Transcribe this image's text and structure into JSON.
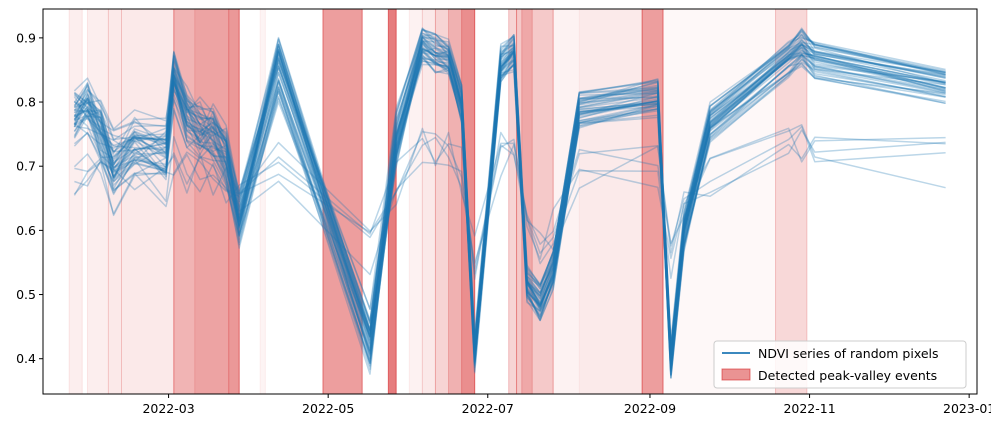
{
  "chart_data": {
    "type": "line",
    "title": "",
    "xlabel": "",
    "ylabel": "",
    "xlim": [
      "2022-01-12",
      "2023-01-04"
    ],
    "ylim": [
      0.345,
      0.945
    ],
    "x_ticks": [
      "2022-03-01",
      "2022-05-01",
      "2022-07-01",
      "2022-09-01",
      "2022-11-01",
      "2023-01-01"
    ],
    "x_tick_labels": [
      "2022-03",
      "2022-05",
      "2022-07",
      "2022-09",
      "2022-11",
      "2023-01"
    ],
    "y_ticks": [
      0.4,
      0.5,
      0.6,
      0.7,
      0.8,
      0.9
    ],
    "y_tick_labels": [
      "0.4",
      "0.5",
      "0.6",
      "0.7",
      "0.8",
      "0.9"
    ],
    "grid": false,
    "legend": {
      "placement": "lower-right",
      "entries": [
        "NDVI series of random pixels",
        "Detected peak-valley events"
      ]
    },
    "colors": {
      "series": "#1f77b4",
      "events": "#d62728"
    },
    "x_dates": [
      "2022-01-24",
      "2022-01-29",
      "2022-02-03",
      "2022-02-08",
      "2022-02-16",
      "2022-02-28",
      "2022-03-03",
      "2022-03-08",
      "2022-03-13",
      "2022-03-18",
      "2022-03-23",
      "2022-03-28",
      "2022-04-12",
      "2022-05-17",
      "2022-05-27",
      "2022-06-06",
      "2022-06-11",
      "2022-06-16",
      "2022-06-21",
      "2022-06-26",
      "2022-07-06",
      "2022-07-11",
      "2022-07-16",
      "2022-07-21",
      "2022-07-26",
      "2022-08-05",
      "2022-09-04",
      "2022-09-09",
      "2022-09-14",
      "2022-09-24",
      "2022-10-24",
      "2022-10-29",
      "2022-11-03",
      "2022-12-23"
    ],
    "typical_series": {
      "name": "NDVI series of random pixels",
      "values": [
        0.78,
        0.8,
        0.76,
        0.71,
        0.74,
        0.73,
        0.84,
        0.78,
        0.76,
        0.75,
        0.72,
        0.62,
        0.86,
        0.43,
        0.74,
        0.89,
        0.88,
        0.87,
        0.8,
        0.41,
        0.86,
        0.88,
        0.52,
        0.49,
        0.54,
        0.79,
        0.81,
        0.4,
        0.6,
        0.77,
        0.87,
        0.89,
        0.87,
        0.83
      ]
    },
    "series_count": 50,
    "events": [
      {
        "start": "2022-01-22",
        "end": "2022-01-27",
        "alpha": 0.08
      },
      {
        "start": "2022-01-29",
        "end": "2022-02-06",
        "alpha": 0.08
      },
      {
        "start": "2022-02-06",
        "end": "2022-02-11",
        "alpha": 0.1
      },
      {
        "start": "2022-02-11",
        "end": "2022-03-03",
        "alpha": 0.1
      },
      {
        "start": "2022-03-03",
        "end": "2022-03-28",
        "alpha": 0.35
      },
      {
        "start": "2022-03-11",
        "end": "2022-03-24",
        "alpha": 0.12
      },
      {
        "start": "2022-03-24",
        "end": "2022-03-28",
        "alpha": 0.2
      },
      {
        "start": "2022-04-05",
        "end": "2022-04-07",
        "alpha": 0.05
      },
      {
        "start": "2022-04-29",
        "end": "2022-05-14",
        "alpha": 0.45
      },
      {
        "start": "2022-05-24",
        "end": "2022-05-27",
        "alpha": 0.6
      },
      {
        "start": "2022-06-01",
        "end": "2022-06-06",
        "alpha": 0.06
      },
      {
        "start": "2022-06-06",
        "end": "2022-06-11",
        "alpha": 0.1
      },
      {
        "start": "2022-06-11",
        "end": "2022-06-26",
        "alpha": 0.2
      },
      {
        "start": "2022-06-16",
        "end": "2022-06-26",
        "alpha": 0.2
      },
      {
        "start": "2022-06-21",
        "end": "2022-06-26",
        "alpha": 0.25
      },
      {
        "start": "2022-07-09",
        "end": "2022-07-12",
        "alpha": 0.2
      },
      {
        "start": "2022-07-12",
        "end": "2022-07-26",
        "alpha": 0.25
      },
      {
        "start": "2022-07-14",
        "end": "2022-07-18",
        "alpha": 0.2
      },
      {
        "start": "2022-07-26",
        "end": "2022-08-29",
        "alpha": 0.06
      },
      {
        "start": "2022-08-05",
        "end": "2022-08-29",
        "alpha": 0.04
      },
      {
        "start": "2022-08-29",
        "end": "2022-09-06",
        "alpha": 0.45
      },
      {
        "start": "2022-09-06",
        "end": "2022-10-19",
        "alpha": 0.03
      },
      {
        "start": "2022-10-19",
        "end": "2022-10-31",
        "alpha": 0.18
      }
    ]
  }
}
